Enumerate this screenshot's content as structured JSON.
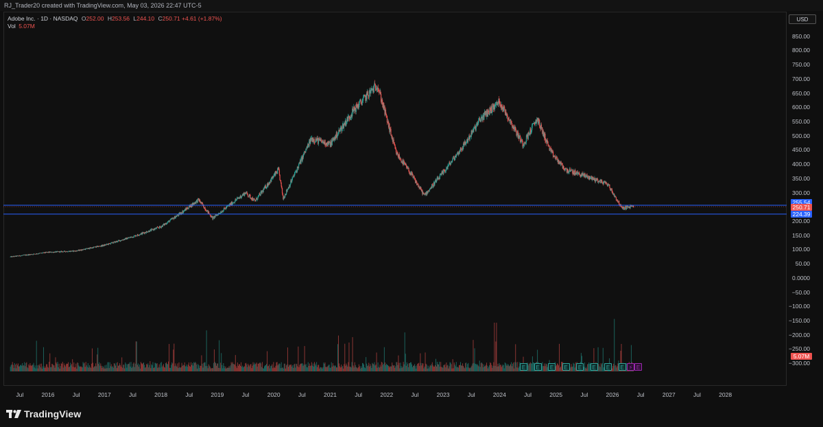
{
  "header": {
    "text": "RJ_Trader20 created with TradingView.com, May 03, 2026 22:47 UTC-5"
  },
  "legend": {
    "symbol": "Adobe Inc. · 1D · NASDAQ",
    "open_label": "O",
    "open_value": "252.00",
    "high_label": "H",
    "high_value": "253.56",
    "low_label": "L",
    "low_value": "244.10",
    "close_label": "C",
    "close_value": "250.71 +4.61 (+1.87%)",
    "vol_label": "Vol",
    "vol_value": "5.07M"
  },
  "price_axis": {
    "currency": "USD",
    "ticks": [
      "850.00",
      "800.00",
      "750.00",
      "700.00",
      "650.00",
      "600.00",
      "550.00",
      "500.00",
      "450.00",
      "400.00",
      "350.00",
      "300.00",
      "250.00",
      "200.00",
      "150.00",
      "100.00",
      "50.00",
      "0.0000",
      "−50.00",
      "−100.00",
      "−150.00",
      "−200.00",
      "−250.00",
      "−300.00"
    ],
    "label_upper": "255.54",
    "label_last": "250.71",
    "label_lower": "224.39",
    "label_volume": "5.07M"
  },
  "time_axis": {
    "ticks": [
      "Jul",
      "2016",
      "Jul",
      "2017",
      "Jul",
      "2018",
      "Jul",
      "2019",
      "Jul",
      "2020",
      "Jul",
      "2021",
      "Jul",
      "2022",
      "Jul",
      "2023",
      "Jul",
      "2024",
      "Jul",
      "2025",
      "Jul",
      "2026",
      "Jul",
      "2027",
      "Jul",
      "2028"
    ]
  },
  "colors": {
    "up": "#26a69a",
    "down": "#ef5350",
    "level_line": "#2962ff",
    "background": "#101010",
    "earnings": "#2ea39a",
    "dividend": "#9c27b0"
  },
  "chart_data": {
    "type": "candlestick",
    "title": "Adobe Inc. · 1D · NASDAQ",
    "y_range": [
      -300,
      850
    ],
    "x_range": [
      "2015-05",
      "2028-07"
    ],
    "price_path": [
      {
        "date": "2015-05",
        "close": 74
      },
      {
        "date": "2016-01",
        "close": 90
      },
      {
        "date": "2016-07",
        "close": 95
      },
      {
        "date": "2017-01",
        "close": 115
      },
      {
        "date": "2017-07",
        "close": 145
      },
      {
        "date": "2018-01",
        "close": 180
      },
      {
        "date": "2018-05",
        "close": 225
      },
      {
        "date": "2018-09",
        "close": 275
      },
      {
        "date": "2018-12",
        "close": 210
      },
      {
        "date": "2019-07",
        "close": 300
      },
      {
        "date": "2019-09",
        "close": 270
      },
      {
        "date": "2020-02",
        "close": 380
      },
      {
        "date": "2020-03",
        "close": 280
      },
      {
        "date": "2020-09",
        "close": 490
      },
      {
        "date": "2021-01",
        "close": 470
      },
      {
        "date": "2021-06",
        "close": 590
      },
      {
        "date": "2021-11",
        "close": 680
      },
      {
        "date": "2022-03",
        "close": 440
      },
      {
        "date": "2022-06",
        "close": 370
      },
      {
        "date": "2022-09",
        "close": 290
      },
      {
        "date": "2023-01",
        "close": 370
      },
      {
        "date": "2023-06",
        "close": 480
      },
      {
        "date": "2023-09",
        "close": 560
      },
      {
        "date": "2024-01",
        "close": 620
      },
      {
        "date": "2024-06",
        "close": 470
      },
      {
        "date": "2024-09",
        "close": 560
      },
      {
        "date": "2024-12",
        "close": 440
      },
      {
        "date": "2025-03",
        "close": 380
      },
      {
        "date": "2025-07",
        "close": 360
      },
      {
        "date": "2025-12",
        "close": 330
      },
      {
        "date": "2026-03",
        "close": 245
      },
      {
        "date": "2026-05",
        "close": 250.71
      }
    ],
    "levels": [
      255.54,
      224.39
    ],
    "last_close": 250.71,
    "last_volume": "5.07M",
    "earnings_markers": 8
  },
  "brand": {
    "name": "TradingView"
  }
}
